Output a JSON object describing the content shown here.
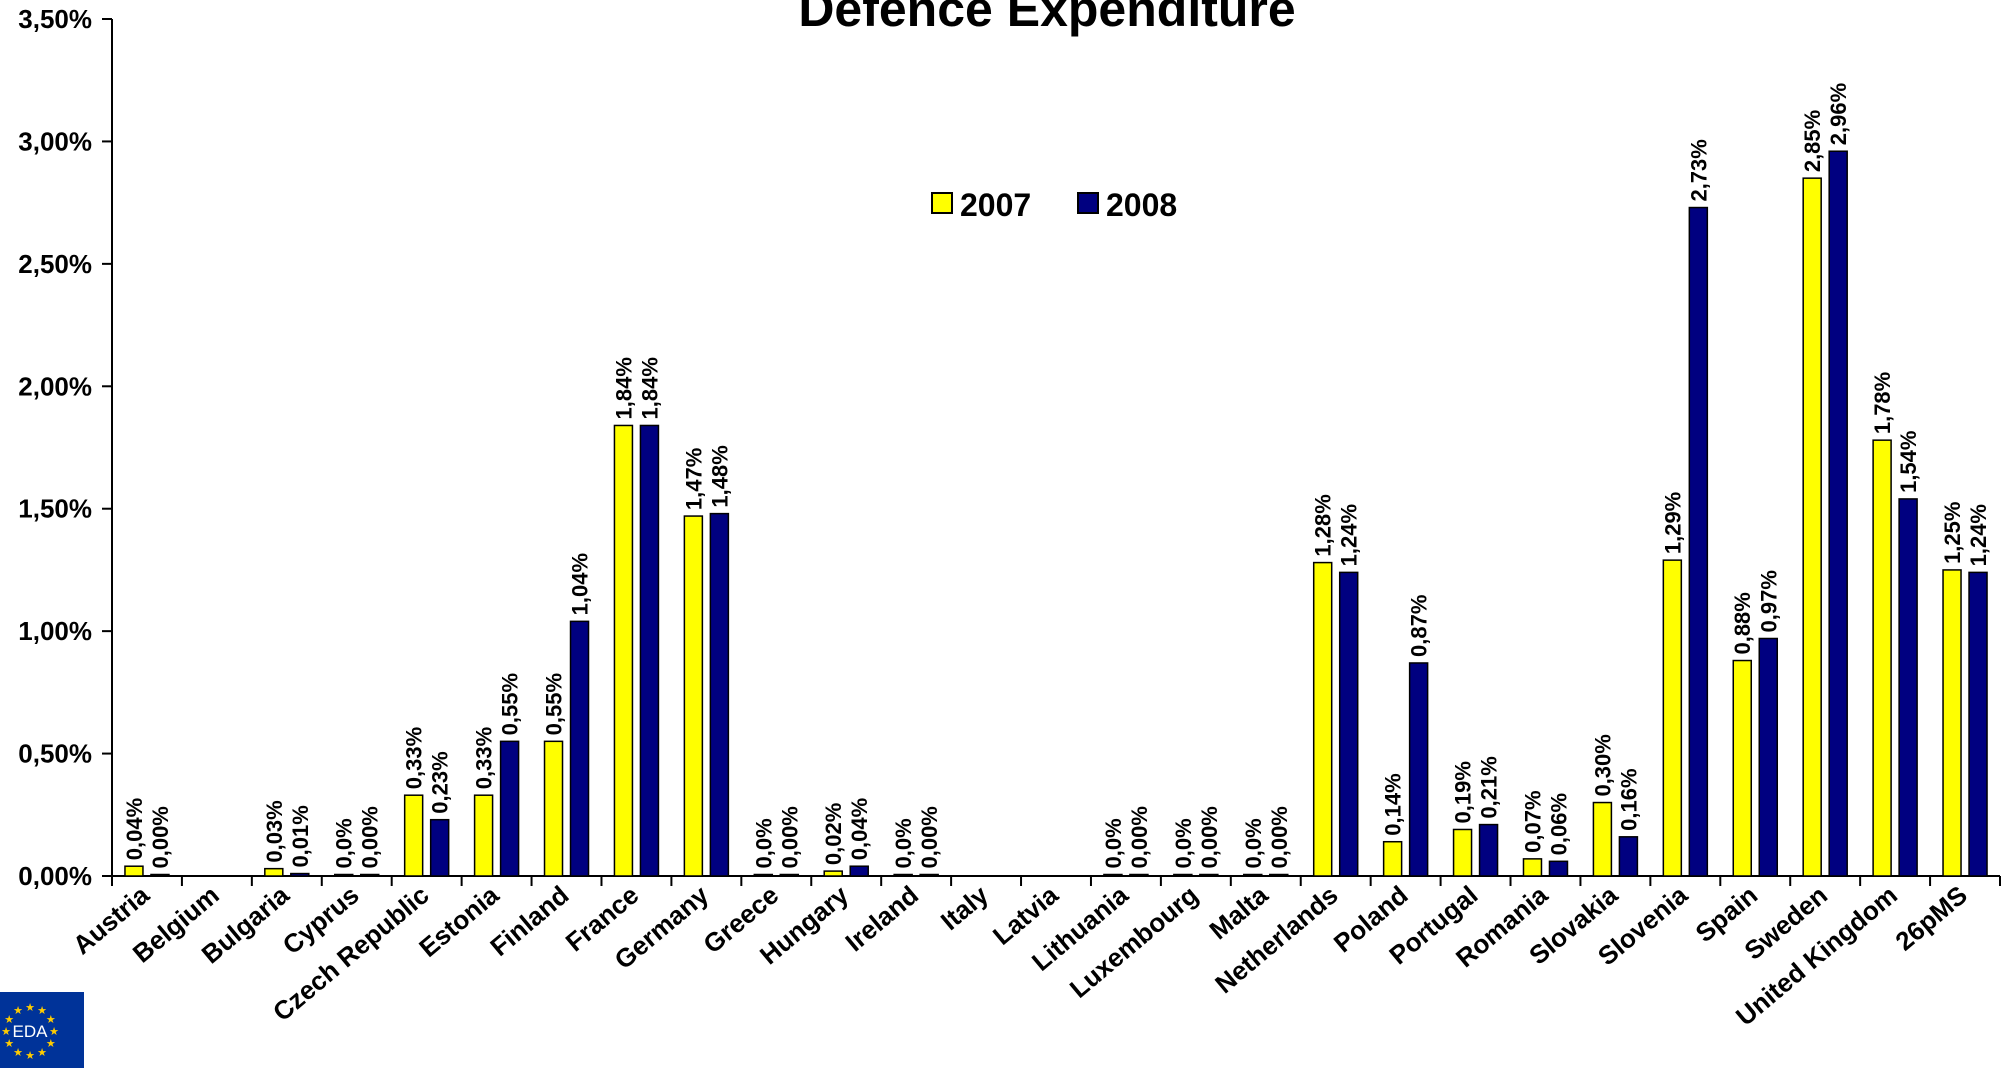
{
  "chart_data": {
    "type": "bar",
    "title": "Defence Expenditure",
    "xlabel": "",
    "ylabel": "",
    "ylim": [
      0,
      0.035
    ],
    "y_ticks": [
      "0,00%",
      "0,50%",
      "1,00%",
      "1,50%",
      "2,00%",
      "2,50%",
      "3,00%",
      "3,50%"
    ],
    "legend_position": "top-center",
    "grid": false,
    "categories": [
      "Austria",
      "Belgium",
      "Bulgaria",
      "Cyprus",
      "Czech Republic",
      "Estonia",
      "Finland",
      "France",
      "Germany",
      "Greece",
      "Hungary",
      "Ireland",
      "Italy",
      "Latvia",
      "Lithuania",
      "Luxembourg",
      "Malta",
      "Netherlands",
      "Poland",
      "Portugal",
      "Romania",
      "Slovakia",
      "Slovenia",
      "Spain",
      "Sweden",
      "United Kingdom",
      "26pMS"
    ],
    "series": [
      {
        "name": "2007",
        "color": "#ffff00",
        "values": [
          0.0004,
          null,
          0.0003,
          0.0,
          0.0033,
          0.0033,
          0.0055,
          0.0184,
          0.0147,
          0.0,
          0.0002,
          0.0,
          null,
          null,
          0.0,
          0.0,
          0.0,
          0.0128,
          0.0014,
          0.0019,
          0.0007,
          0.003,
          0.0129,
          0.0088,
          0.0285,
          0.0178,
          0.0125
        ],
        "labels": [
          "0,04%",
          "",
          "0,03%",
          "0,0%",
          "0,33%",
          "0,33%",
          "0,55%",
          "1,84%",
          "1,47%",
          "0,0%",
          "0,02%",
          "0,0%",
          "",
          "",
          "0,0%",
          "0,0%",
          "0,0%",
          "1,28%",
          "0,14%",
          "0,19%",
          "0,07%",
          "0,30%",
          "1,29%",
          "0,88%",
          "2,85%",
          "1,78%",
          "1,25%"
        ]
      },
      {
        "name": "2008",
        "color": "#000080",
        "values": [
          0.0,
          null,
          0.0001,
          0.0,
          0.0023,
          0.0055,
          0.0104,
          0.0184,
          0.0148,
          0.0,
          0.0004,
          0.0,
          null,
          null,
          0.0,
          0.0,
          0.0,
          0.0124,
          0.0087,
          0.0021,
          0.0006,
          0.0016,
          0.0273,
          0.0097,
          0.0296,
          0.0154,
          0.0124
        ],
        "labels": [
          "0,00%",
          "",
          "0,01%",
          "0,00%",
          "0,23%",
          "0,55%",
          "1,04%",
          "1,84%",
          "1,48%",
          "0,00%",
          "0,04%",
          "0,00%",
          "",
          "",
          "0,00%",
          "0,00%",
          "0,00%",
          "1,24%",
          "0,87%",
          "0,21%",
          "0,06%",
          "0,16%",
          "2,73%",
          "0,97%",
          "2,96%",
          "1,54%",
          "1,24%"
        ]
      }
    ]
  },
  "logo": {
    "text": "EDA",
    "background": "#003399",
    "star_color": "#ffcc00"
  }
}
